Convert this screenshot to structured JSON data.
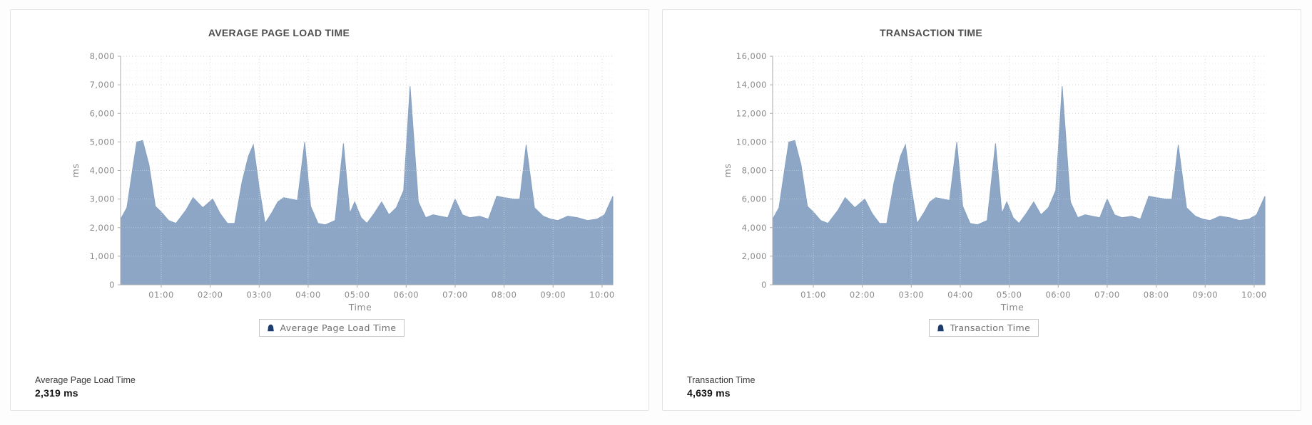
{
  "colors": {
    "area_fill": "#8da6c5",
    "area_stroke": "#87a1c2",
    "legend_marker": "#1d3c6e",
    "axis_line": "#adadad",
    "grid_major": "#cfcfcf",
    "grid_minor": "#e9e9e9",
    "tick_text": "#8a8a8a",
    "card_border": "#e3e3e3"
  },
  "chart_data": [
    {
      "type": "area",
      "title": "AVERAGE PAGE LOAD TIME",
      "xlabel": "Time",
      "ylabel": "ms",
      "ylim": [
        0,
        8000
      ],
      "xlim_hours": [
        0.17,
        10.22
      ],
      "grid": "dotted",
      "legend_position": "bottom",
      "legend_label": "Average Page Load Time",
      "y_tick_labels": [
        "0",
        "1,000",
        "2,000",
        "3,000",
        "4,000",
        "5,000",
        "6,000",
        "7,000",
        "8,000"
      ],
      "x_ticks": [
        "01:00",
        "02:00",
        "03:00",
        "04:00",
        "05:00",
        "06:00",
        "07:00",
        "08:00",
        "09:00",
        "10:00"
      ],
      "series": [
        {
          "name": "Average Page Load Time",
          "color": "#8da6c5",
          "points_hours_ms": [
            [
              0.17,
              2300
            ],
            [
              0.3,
              2700
            ],
            [
              0.42,
              4100
            ],
            [
              0.5,
              5000
            ],
            [
              0.62,
              5050
            ],
            [
              0.75,
              4200
            ],
            [
              0.88,
              2750
            ],
            [
              1.0,
              2550
            ],
            [
              1.15,
              2250
            ],
            [
              1.3,
              2150
            ],
            [
              1.5,
              2600
            ],
            [
              1.65,
              3050
            ],
            [
              1.85,
              2700
            ],
            [
              2.05,
              3000
            ],
            [
              2.2,
              2500
            ],
            [
              2.35,
              2150
            ],
            [
              2.5,
              2150
            ],
            [
              2.65,
              3600
            ],
            [
              2.78,
              4500
            ],
            [
              2.88,
              4900
            ],
            [
              3.0,
              3400
            ],
            [
              3.12,
              2150
            ],
            [
              3.25,
              2500
            ],
            [
              3.38,
              2900
            ],
            [
              3.5,
              3050
            ],
            [
              3.65,
              3000
            ],
            [
              3.78,
              2950
            ],
            [
              3.93,
              5000
            ],
            [
              4.05,
              2750
            ],
            [
              4.2,
              2150
            ],
            [
              4.35,
              2100
            ],
            [
              4.55,
              2250
            ],
            [
              4.72,
              4950
            ],
            [
              4.85,
              2500
            ],
            [
              4.95,
              2900
            ],
            [
              5.08,
              2350
            ],
            [
              5.2,
              2150
            ],
            [
              5.35,
              2500
            ],
            [
              5.5,
              2900
            ],
            [
              5.65,
              2450
            ],
            [
              5.8,
              2700
            ],
            [
              5.95,
              3300
            ],
            [
              6.08,
              6950
            ],
            [
              6.25,
              2900
            ],
            [
              6.4,
              2350
            ],
            [
              6.55,
              2450
            ],
            [
              6.7,
              2400
            ],
            [
              6.85,
              2350
            ],
            [
              7.0,
              3000
            ],
            [
              7.15,
              2450
            ],
            [
              7.3,
              2350
            ],
            [
              7.5,
              2400
            ],
            [
              7.68,
              2300
            ],
            [
              7.85,
              3100
            ],
            [
              8.0,
              3050
            ],
            [
              8.2,
              3000
            ],
            [
              8.32,
              3000
            ],
            [
              8.45,
              4900
            ],
            [
              8.62,
              2700
            ],
            [
              8.8,
              2400
            ],
            [
              8.95,
              2300
            ],
            [
              9.1,
              2250
            ],
            [
              9.3,
              2400
            ],
            [
              9.5,
              2350
            ],
            [
              9.7,
              2250
            ],
            [
              9.9,
              2300
            ],
            [
              10.05,
              2450
            ],
            [
              10.22,
              3100
            ]
          ]
        }
      ],
      "summary": {
        "label": "Average Page Load Time",
        "value": "2,319 ms"
      }
    },
    {
      "type": "area",
      "title": "TRANSACTION TIME",
      "xlabel": "Time",
      "ylabel": "ms",
      "ylim": [
        0,
        16000
      ],
      "xlim_hours": [
        0.17,
        10.22
      ],
      "grid": "dotted",
      "legend_position": "bottom",
      "legend_label": "Transaction Time",
      "y_tick_labels": [
        "0",
        "2,000",
        "4,000",
        "6,000",
        "8,000",
        "10,000",
        "12,000",
        "14,000",
        "16,000"
      ],
      "x_ticks": [
        "01:00",
        "02:00",
        "03:00",
        "04:00",
        "05:00",
        "06:00",
        "07:00",
        "08:00",
        "09:00",
        "10:00"
      ],
      "series": [
        {
          "name": "Transaction Time",
          "color": "#8da6c5",
          "points_hours_ms": [
            [
              0.17,
              4600
            ],
            [
              0.3,
              5400
            ],
            [
              0.42,
              8200
            ],
            [
              0.5,
              10000
            ],
            [
              0.62,
              10100
            ],
            [
              0.75,
              8400
            ],
            [
              0.88,
              5500
            ],
            [
              1.0,
              5100
            ],
            [
              1.15,
              4500
            ],
            [
              1.3,
              4300
            ],
            [
              1.5,
              5200
            ],
            [
              1.65,
              6100
            ],
            [
              1.85,
              5400
            ],
            [
              2.05,
              6000
            ],
            [
              2.2,
              5000
            ],
            [
              2.35,
              4300
            ],
            [
              2.5,
              4300
            ],
            [
              2.65,
              7200
            ],
            [
              2.78,
              9000
            ],
            [
              2.88,
              9800
            ],
            [
              3.0,
              6800
            ],
            [
              3.12,
              4300
            ],
            [
              3.25,
              5000
            ],
            [
              3.38,
              5800
            ],
            [
              3.5,
              6100
            ],
            [
              3.65,
              6000
            ],
            [
              3.78,
              5900
            ],
            [
              3.93,
              10000
            ],
            [
              4.05,
              5500
            ],
            [
              4.2,
              4300
            ],
            [
              4.35,
              4200
            ],
            [
              4.55,
              4500
            ],
            [
              4.72,
              9900
            ],
            [
              4.85,
              5000
            ],
            [
              4.95,
              5800
            ],
            [
              5.08,
              4700
            ],
            [
              5.2,
              4300
            ],
            [
              5.35,
              5000
            ],
            [
              5.5,
              5800
            ],
            [
              5.65,
              4900
            ],
            [
              5.8,
              5400
            ],
            [
              5.95,
              6600
            ],
            [
              6.08,
              13900
            ],
            [
              6.25,
              5800
            ],
            [
              6.4,
              4700
            ],
            [
              6.55,
              4900
            ],
            [
              6.7,
              4800
            ],
            [
              6.85,
              4700
            ],
            [
              7.0,
              6000
            ],
            [
              7.15,
              4900
            ],
            [
              7.3,
              4700
            ],
            [
              7.5,
              4800
            ],
            [
              7.68,
              4600
            ],
            [
              7.85,
              6200
            ],
            [
              8.0,
              6100
            ],
            [
              8.2,
              6000
            ],
            [
              8.32,
              6000
            ],
            [
              8.45,
              9800
            ],
            [
              8.62,
              5400
            ],
            [
              8.8,
              4800
            ],
            [
              8.95,
              4600
            ],
            [
              9.1,
              4500
            ],
            [
              9.3,
              4800
            ],
            [
              9.5,
              4700
            ],
            [
              9.7,
              4500
            ],
            [
              9.9,
              4600
            ],
            [
              10.05,
              4900
            ],
            [
              10.22,
              6200
            ]
          ]
        }
      ],
      "summary": {
        "label": "Transaction Time",
        "value": "4,639 ms"
      }
    }
  ]
}
